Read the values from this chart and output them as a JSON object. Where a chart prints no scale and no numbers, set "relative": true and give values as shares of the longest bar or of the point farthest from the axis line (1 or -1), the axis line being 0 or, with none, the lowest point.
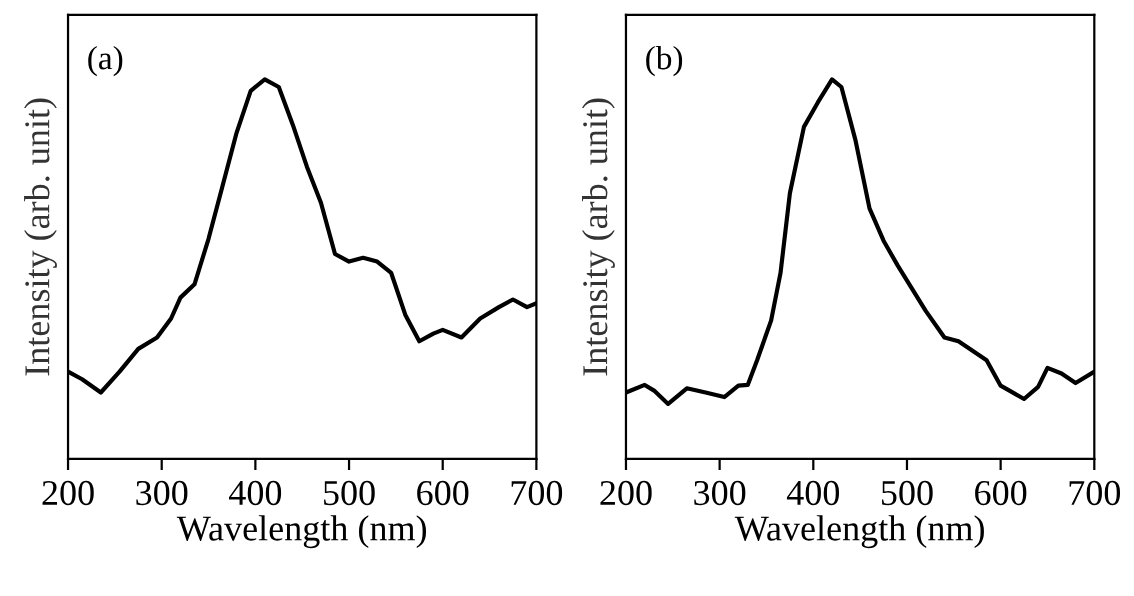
{
  "chart_data": [
    {
      "type": "line",
      "relative": true,
      "xlabel": "Wavelength (nm)",
      "ylabel": "Intensity (arb. unit)",
      "annotations": [
        "(a)"
      ],
      "xlim": [
        200,
        700
      ],
      "xticks": [
        200,
        300,
        400,
        500,
        600,
        700
      ],
      "tick_labels": "x",
      "grid": false,
      "legend": false,
      "marker": "none",
      "line_style": "solid",
      "series": [
        {
          "color": "#000000",
          "x": [
            200,
            215,
            235,
            255,
            275,
            295,
            310,
            320,
            335,
            350,
            365,
            380,
            395,
            410,
            425,
            440,
            455,
            470,
            485,
            500,
            515,
            530,
            545,
            560,
            575,
            590,
            600,
            620,
            640,
            660,
            675,
            690,
            700
          ],
          "values": [
            0.23,
            0.21,
            0.175,
            0.23,
            0.29,
            0.32,
            0.37,
            0.425,
            0.46,
            0.58,
            0.72,
            0.86,
            0.97,
            1.0,
            0.98,
            0.88,
            0.77,
            0.675,
            0.54,
            0.52,
            0.53,
            0.52,
            0.49,
            0.38,
            0.31,
            0.33,
            0.34,
            0.32,
            0.37,
            0.4,
            0.42,
            0.4,
            0.41
          ]
        }
      ]
    },
    {
      "type": "line",
      "relative": true,
      "xlabel": "Wavelength (nm)",
      "ylabel": "Intensity (arb. unit)",
      "annotations": [
        "(b)"
      ],
      "xlim": [
        200,
        700
      ],
      "xticks": [
        200,
        300,
        400,
        500,
        600,
        700
      ],
      "tick_labels": "x",
      "grid": false,
      "legend": false,
      "marker": "none",
      "line_style": "solid",
      "series": [
        {
          "color": "#000000",
          "x": [
            200,
            220,
            230,
            245,
            265,
            285,
            305,
            320,
            330,
            340,
            355,
            365,
            375,
            390,
            405,
            420,
            430,
            445,
            460,
            475,
            490,
            505,
            520,
            540,
            555,
            570,
            585,
            600,
            615,
            625,
            640,
            650,
            665,
            680,
            700
          ],
          "values": [
            0.175,
            0.195,
            0.18,
            0.145,
            0.186,
            0.175,
            0.163,
            0.193,
            0.195,
            0.26,
            0.365,
            0.49,
            0.7,
            0.875,
            0.94,
            1.0,
            0.98,
            0.84,
            0.66,
            0.575,
            0.51,
            0.45,
            0.39,
            0.32,
            0.31,
            0.285,
            0.26,
            0.193,
            0.172,
            0.158,
            0.19,
            0.24,
            0.225,
            0.2,
            0.23
          ]
        }
      ]
    }
  ]
}
